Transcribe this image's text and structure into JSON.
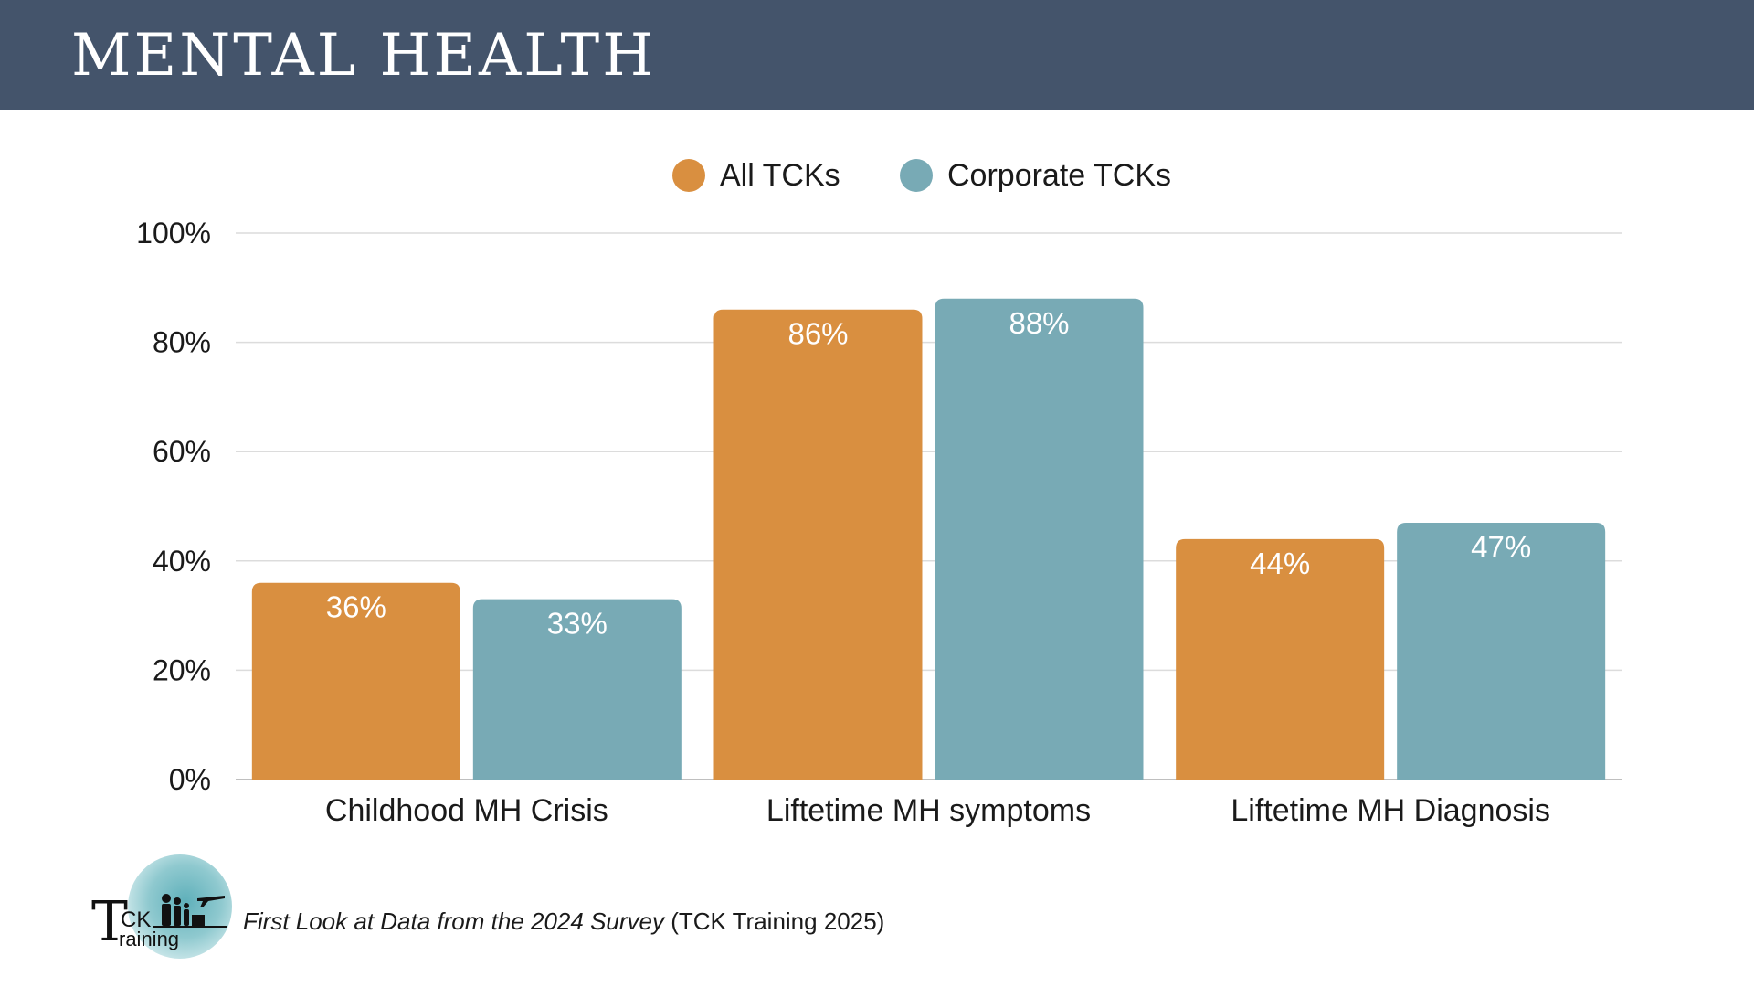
{
  "header": {
    "title": "MENTAL HEALTH"
  },
  "chart_data": {
    "type": "bar",
    "categories": [
      "Childhood MH Crisis",
      "Liftetime MH symptoms",
      "Liftetime MH Diagnosis"
    ],
    "series": [
      {
        "name": "All TCKs",
        "values": [
          36,
          86,
          44
        ],
        "labels": [
          "36%",
          "86%",
          "44%"
        ],
        "color": "#d98f40"
      },
      {
        "name": "Corporate TCKs",
        "values": [
          33,
          88,
          47
        ],
        "labels": [
          "33%",
          "88%",
          "47%"
        ],
        "color": "#78aab5"
      }
    ],
    "ylim": [
      0,
      100
    ],
    "yticks": [
      0,
      20,
      40,
      60,
      80,
      100
    ],
    "ytick_labels": [
      "0%",
      "20%",
      "40%",
      "60%",
      "80%",
      "100%"
    ],
    "grid": true,
    "legend_position": "top-center"
  },
  "footer": {
    "logo": {
      "name": "tck-training-logo",
      "text_t": "T",
      "text_ck": "CK",
      "text_raining": "raining"
    },
    "source_italic": "First Look at Data from the 2024 Survey",
    "source_rest": " (TCK Training 2025)"
  }
}
